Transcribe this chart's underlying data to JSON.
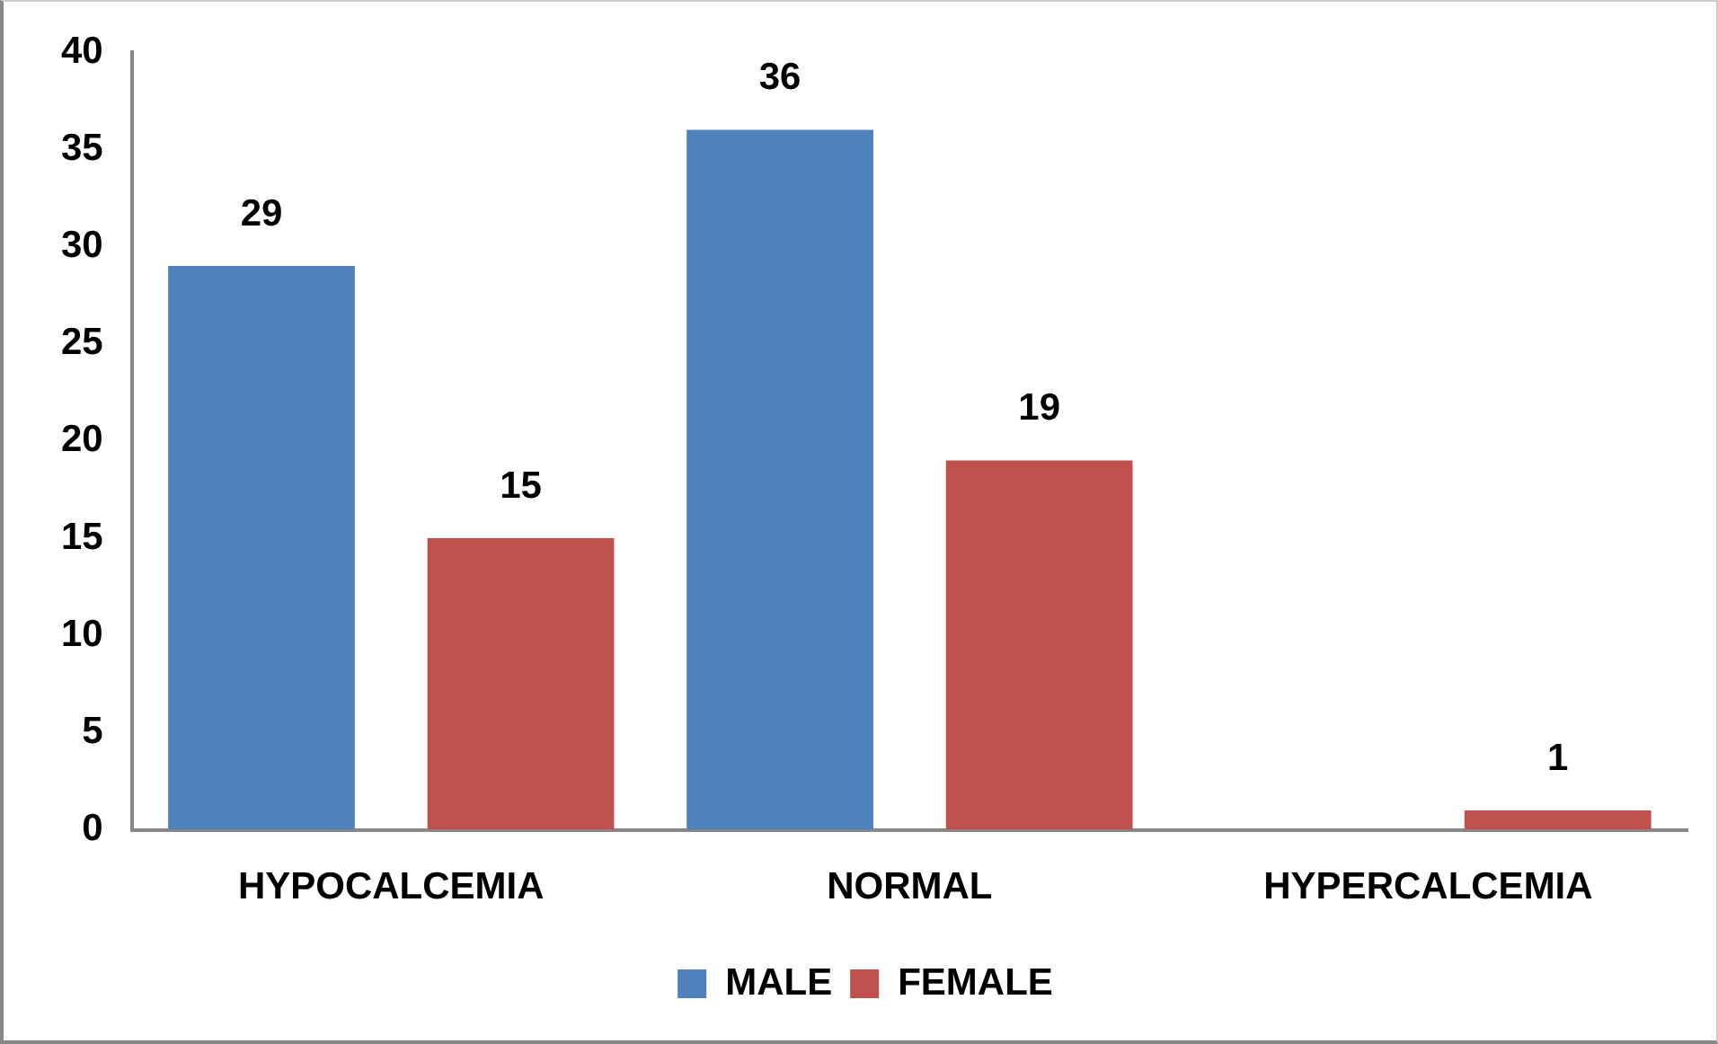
{
  "chart_data": {
    "type": "bar",
    "categories": [
      "HYPOCALCEMIA",
      "NORMAL",
      "HYPERCALCEMIA"
    ],
    "series": [
      {
        "name": "MALE",
        "color": "#4f81bd",
        "values": [
          29,
          36,
          0
        ],
        "value_labels": [
          "29",
          "36",
          null
        ]
      },
      {
        "name": "FEMALE",
        "color": "#c0504d",
        "values": [
          15,
          19,
          1
        ],
        "value_labels": [
          "15",
          "19",
          "1"
        ]
      }
    ],
    "ylim": [
      0,
      40
    ],
    "yticks": [
      0,
      5,
      10,
      15,
      20,
      25,
      30,
      35,
      40
    ],
    "grid": false,
    "legend": "bottom"
  }
}
